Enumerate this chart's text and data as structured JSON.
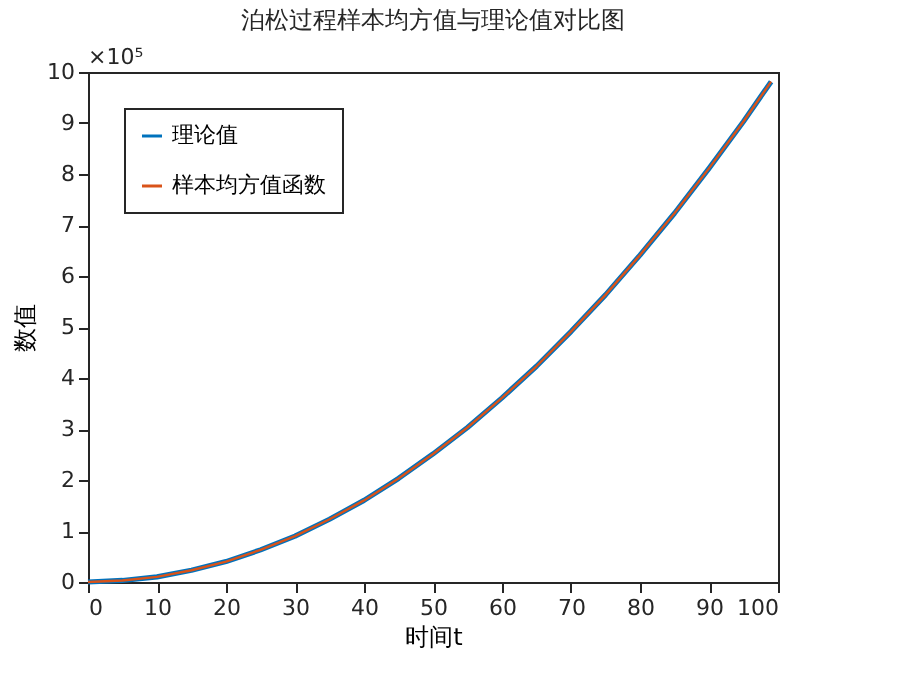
{
  "chart_data": {
    "type": "line",
    "title": "泊松过程样本均方值与理论值对比图",
    "xlabel": "时间t",
    "ylabel": "数值",
    "x": [
      0,
      5,
      10,
      15,
      20,
      25,
      30,
      35,
      40,
      45,
      50,
      55,
      60,
      65,
      70,
      75,
      80,
      85,
      90,
      95,
      99
    ],
    "series": [
      {
        "name": "理论值",
        "color": "#0072bd",
        "values": [
          0,
          0.03,
          0.1,
          0.23,
          0.4,
          0.63,
          0.9,
          1.23,
          1.6,
          2.03,
          2.51,
          3.03,
          3.61,
          4.23,
          4.91,
          5.63,
          6.41,
          7.23,
          8.11,
          9.03,
          9.81
        ]
      },
      {
        "name": "样本均方值函数",
        "color": "#d95319",
        "values": [
          0,
          0.03,
          0.1,
          0.23,
          0.4,
          0.63,
          0.9,
          1.23,
          1.6,
          2.03,
          2.51,
          3.03,
          3.61,
          4.23,
          4.91,
          5.63,
          6.41,
          7.23,
          8.11,
          9.03,
          9.81
        ]
      }
    ],
    "xlim": [
      0,
      100
    ],
    "xticks": [
      0,
      10,
      20,
      30,
      40,
      50,
      60,
      70,
      80,
      90,
      100
    ],
    "ylim": [
      0,
      10
    ],
    "yticks": [
      0,
      1,
      2,
      3,
      4,
      5,
      6,
      7,
      8,
      9,
      10
    ],
    "annotations": [
      "×10⁵"
    ],
    "legend": "top left",
    "grid": false,
    "line_style": "solid",
    "marker": "none"
  }
}
